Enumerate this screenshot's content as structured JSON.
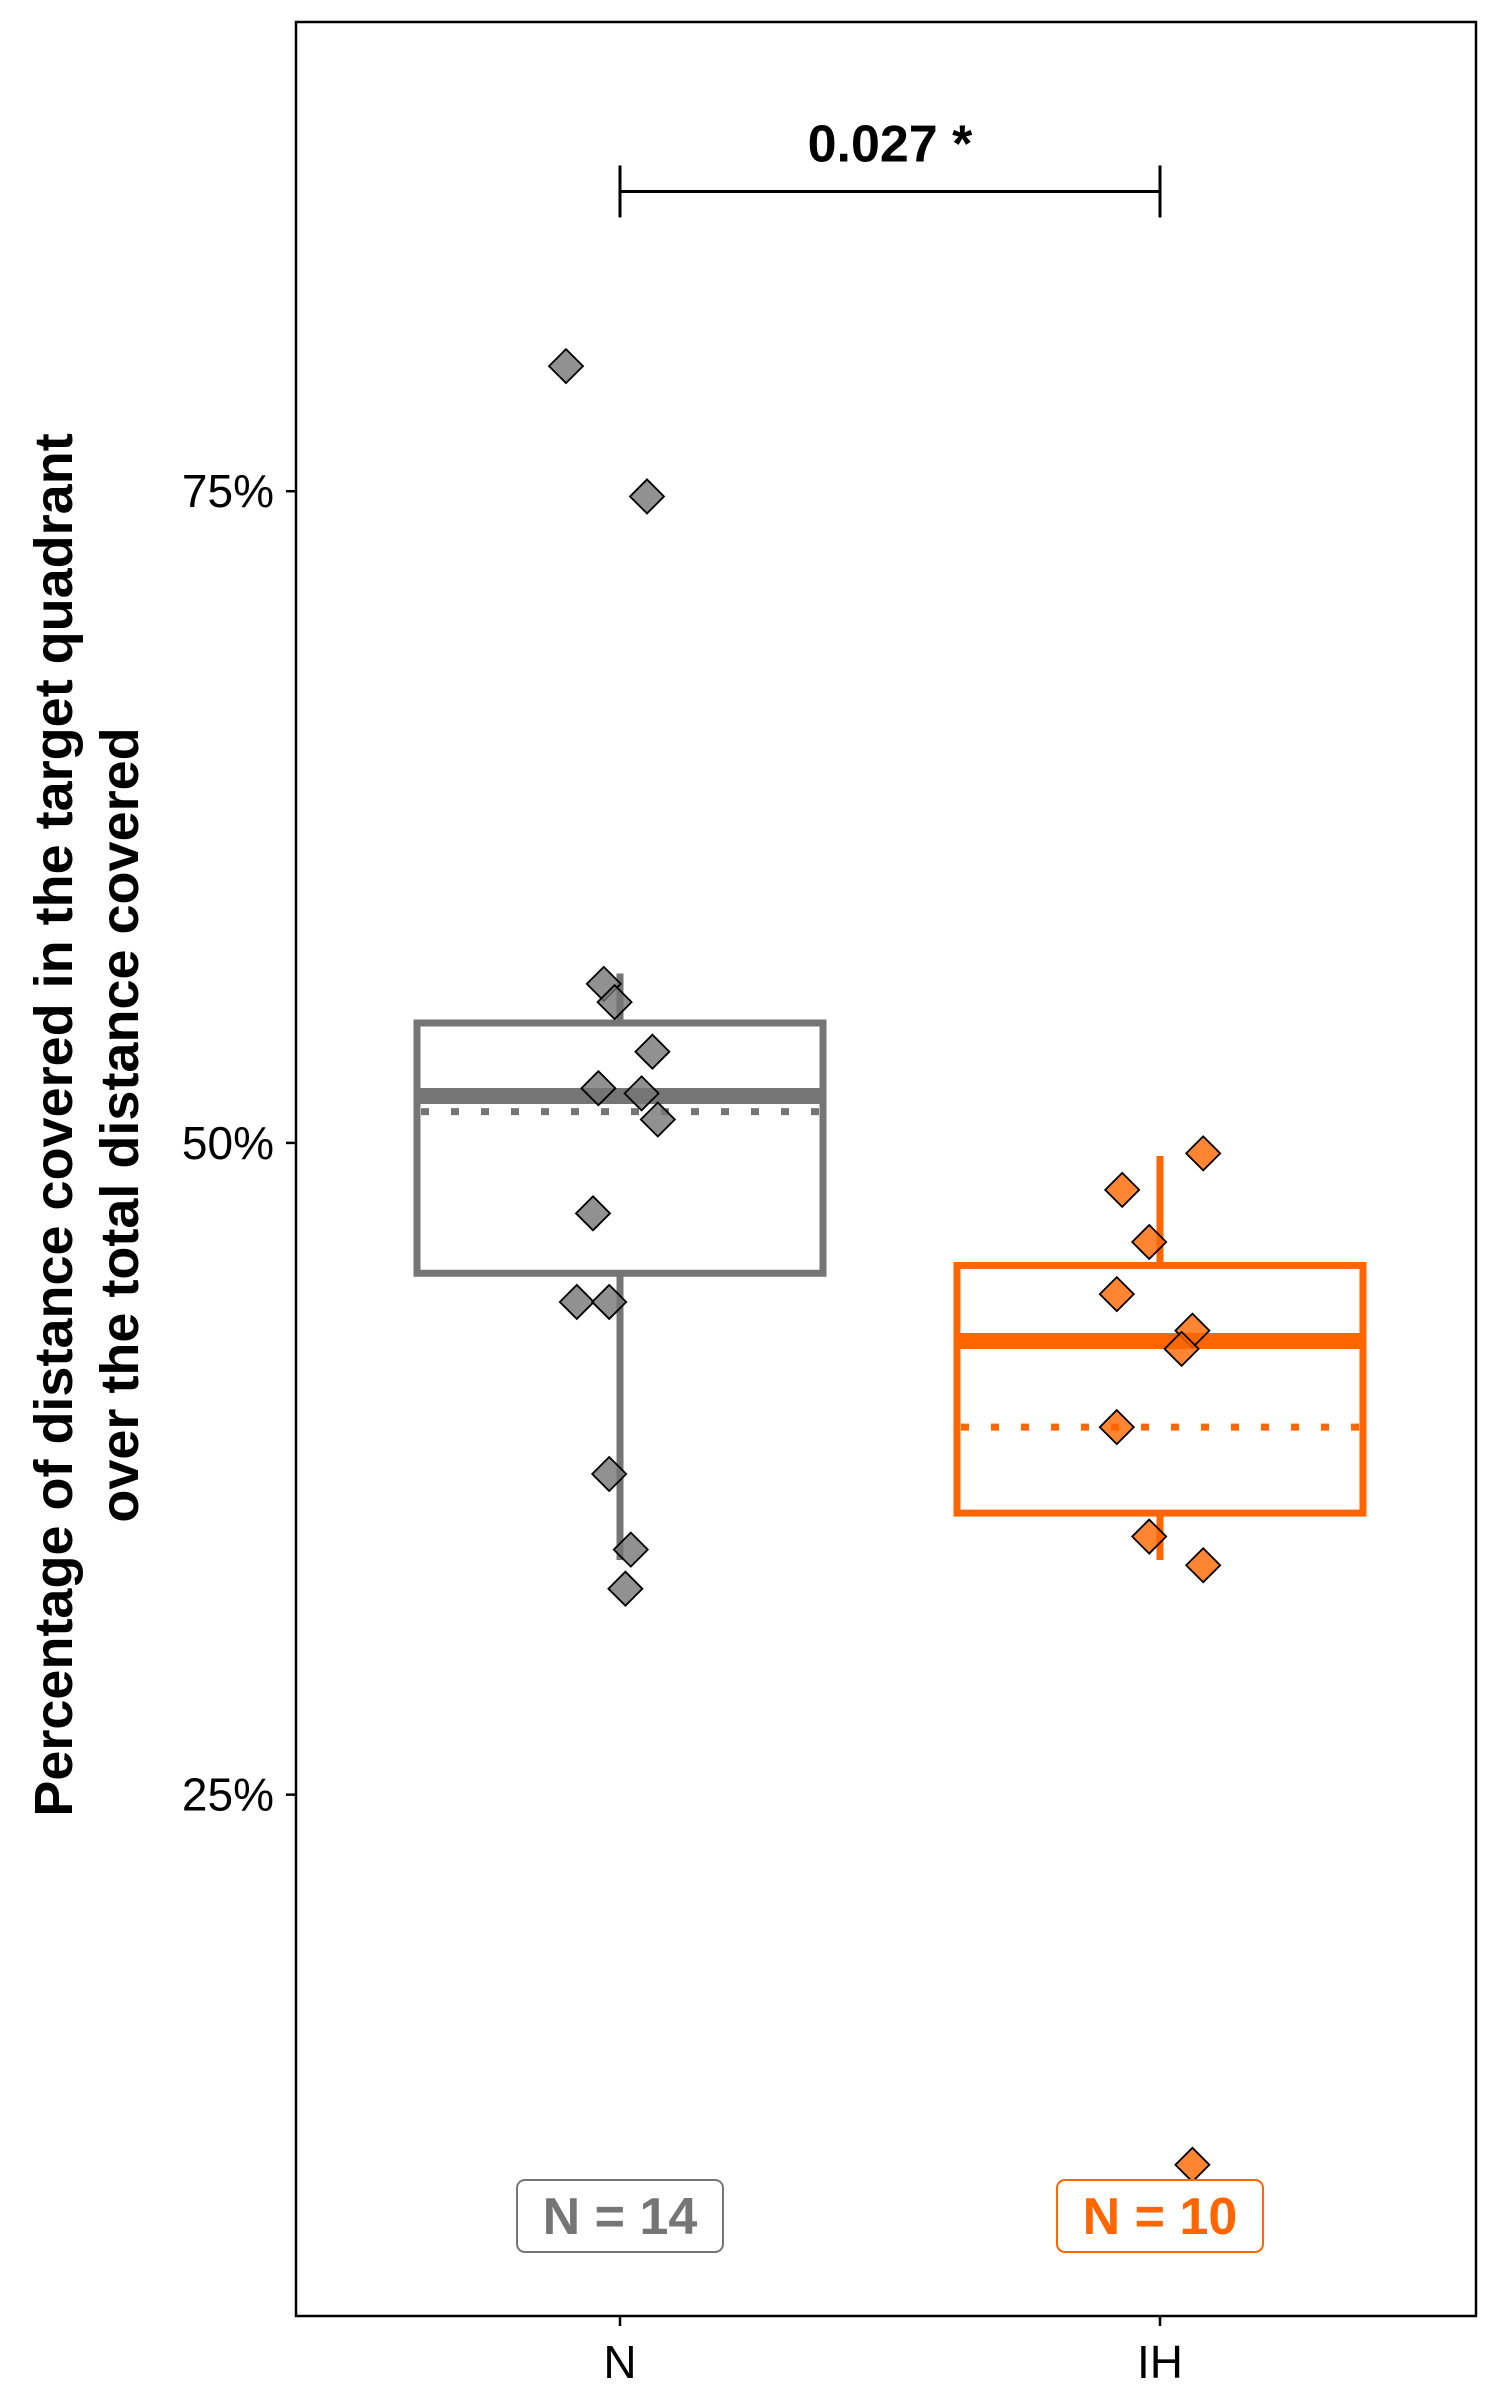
{
  "chart_data": {
    "type": "box",
    "title": "",
    "xlabel": "",
    "ylabel_line1": "Percentage  of distance covered  in the target quadrant",
    "ylabel_line2": "over the total distance covered",
    "ylim": [
      5,
      93
    ],
    "yticks": [
      {
        "value": 25,
        "label": "25%"
      },
      {
        "value": 50,
        "label": "50%"
      },
      {
        "value": 75,
        "label": "75%"
      }
    ],
    "categories": [
      "N",
      "IH"
    ],
    "groups": [
      {
        "category": "N",
        "color": "#757575",
        "n_label": "N = 14",
        "box": {
          "q1": 45.0,
          "median": 51.8,
          "mean": 51.2,
          "q3": 54.6,
          "whisker_low": 34.0,
          "whisker_high": 56.5
        },
        "points": [
          {
            "x": 0.9,
            "y": 79.8
          },
          {
            "x": 1.05,
            "y": 74.8
          },
          {
            "x": 0.97,
            "y": 56.1
          },
          {
            "x": 0.99,
            "y": 55.4
          },
          {
            "x": 1.06,
            "y": 53.5
          },
          {
            "x": 0.96,
            "y": 52.1
          },
          {
            "x": 1.04,
            "y": 51.9
          },
          {
            "x": 1.07,
            "y": 50.9
          },
          {
            "x": 0.95,
            "y": 47.3
          },
          {
            "x": 0.92,
            "y": 43.9
          },
          {
            "x": 0.98,
            "y": 43.9
          },
          {
            "x": 0.98,
            "y": 37.3
          },
          {
            "x": 1.02,
            "y": 34.4
          },
          {
            "x": 1.01,
            "y": 32.9
          }
        ]
      },
      {
        "category": "IH",
        "color": "#ff6600",
        "n_label": "N = 10",
        "box": {
          "q1": 35.8,
          "median": 42.4,
          "mean": 39.1,
          "q3": 45.3,
          "whisker_low": 34.0,
          "whisker_high": 49.5
        },
        "points": [
          {
            "x": 2.08,
            "y": 49.6
          },
          {
            "x": 1.93,
            "y": 48.2
          },
          {
            "x": 1.98,
            "y": 46.2
          },
          {
            "x": 1.92,
            "y": 44.2
          },
          {
            "x": 2.06,
            "y": 42.8
          },
          {
            "x": 2.04,
            "y": 42.1
          },
          {
            "x": 1.92,
            "y": 39.1
          },
          {
            "x": 1.98,
            "y": 34.9
          },
          {
            "x": 2.08,
            "y": 33.8
          },
          {
            "x": 2.06,
            "y": 10.8
          }
        ]
      }
    ],
    "annotation": {
      "text": "0.027 *",
      "y": 86.5
    }
  }
}
